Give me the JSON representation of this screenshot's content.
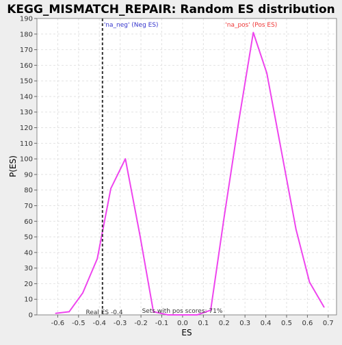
{
  "chart_data": {
    "type": "line",
    "title": "KEGG_MISMATCH_REPAIR: Random ES distribution",
    "xlabel": "ES",
    "ylabel": "P(ES)",
    "xlim": [
      -0.7,
      0.74
    ],
    "ylim": [
      0,
      190
    ],
    "x_ticks": [
      -0.6,
      -0.5,
      -0.4,
      -0.3,
      -0.2,
      -0.1,
      0.0,
      0.1,
      0.2,
      0.3,
      0.4,
      0.5,
      0.6,
      0.7
    ],
    "x_tick_labels": [
      "-0.6",
      "-0.5",
      "-0.4",
      "-0.3",
      "-0.2",
      "-0.1",
      "0.0",
      "0.1",
      "0.2",
      "0.3",
      "0.4",
      "0.5",
      "0.6",
      "0.7"
    ],
    "y_ticks": [
      0,
      10,
      20,
      30,
      40,
      50,
      60,
      70,
      80,
      90,
      100,
      110,
      120,
      130,
      140,
      150,
      160,
      170,
      180,
      190
    ],
    "grid": true,
    "series": [
      {
        "color": "#ee44ee",
        "x": [
          -0.61,
          -0.545,
          -0.48,
          -0.41,
          -0.345,
          -0.275,
          -0.205,
          -0.14,
          -0.07,
          0.0,
          0.07,
          0.135,
          0.2,
          0.27,
          0.34,
          0.405,
          0.475,
          0.545,
          0.61,
          0.68
        ],
        "y": [
          1,
          2,
          14,
          36,
          81,
          100,
          51,
          2,
          0,
          0,
          0,
          3,
          63,
          124,
          181,
          155,
          105,
          55,
          21,
          5
        ]
      }
    ],
    "vertical_line": {
      "x": -0.385,
      "style": "dashed",
      "color": "#333333"
    },
    "annotations": {
      "neg_label": "'na_neg' (Neg ES)",
      "neg_color": "#3333cc",
      "pos_label": "'na_pos' (Pos ES)",
      "pos_color": "#ee3333",
      "real_es": "Real ES -0.4",
      "pos_scores": "Sets with pos scores: 71%"
    }
  }
}
